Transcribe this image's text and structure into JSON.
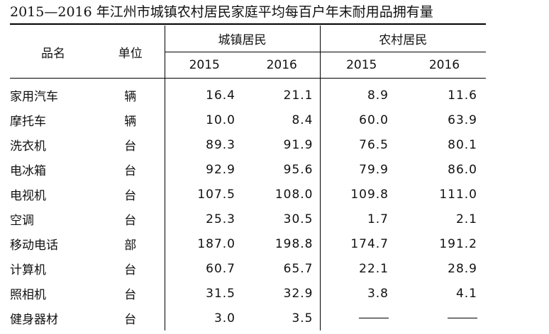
{
  "title": "2015—2016 年江州市城镇农村居民家庭平均每百户年末耐用品拥有量",
  "headers": {
    "item": "品名",
    "unit": "单位",
    "urban": "城镇居民",
    "rural": "农村居民",
    "years": [
      "2015",
      "2016",
      "2015",
      "2016"
    ]
  },
  "rows": [
    {
      "name": "家用汽车",
      "unit": "辆",
      "values": [
        "16.4",
        "21.1",
        "8.9",
        "11.6"
      ]
    },
    {
      "name": "摩托车",
      "unit": "辆",
      "values": [
        "10.0",
        "8.4",
        "60.0",
        "63.9"
      ]
    },
    {
      "name": "洗衣机",
      "unit": "台",
      "values": [
        "89.3",
        "91.9",
        "76.5",
        "80.1"
      ]
    },
    {
      "name": "电冰箱",
      "unit": "台",
      "values": [
        "92.9",
        "95.6",
        "79.9",
        "86.0"
      ]
    },
    {
      "name": "电视机",
      "unit": "台",
      "values": [
        "107.5",
        "108.0",
        "109.8",
        "111.0"
      ]
    },
    {
      "name": "空调",
      "unit": "台",
      "values": [
        "25.3",
        "30.5",
        "1.7",
        "2.1"
      ]
    },
    {
      "name": "移动电话",
      "unit": "部",
      "values": [
        "187.0",
        "198.8",
        "174.7",
        "191.2"
      ]
    },
    {
      "name": "计算机",
      "unit": "台",
      "values": [
        "60.7",
        "65.7",
        "22.1",
        "28.9"
      ]
    },
    {
      "name": "照相机",
      "unit": "台",
      "values": [
        "31.5",
        "32.9",
        "3.8",
        "4.1"
      ]
    },
    {
      "name": "健身器材",
      "unit": "台",
      "values": [
        "3.0",
        "3.5",
        "——",
        "——"
      ]
    }
  ]
}
